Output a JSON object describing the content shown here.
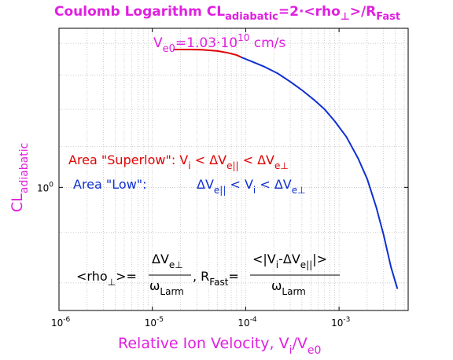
{
  "chart_data": {
    "type": "line",
    "title": {
      "main": "Coulomb Logarithm CL",
      "main_sub": "adiabatic",
      "eq": "=2·<rho",
      "eq_sub": "⊥",
      "tail": ">/R",
      "tail_sub": "Fast"
    },
    "subtitle": {
      "base": "V",
      "sub": "e0",
      "eq": "=1.03·10",
      "sup": "10",
      "unit": " cm/s"
    },
    "xlabel": {
      "main": "Relative Ion Velocity, V",
      "sub1": "i",
      "slash": "/V",
      "sub2": "e0"
    },
    "ylabel": {
      "main": "CL",
      "sub": "adiabatic"
    },
    "x_scale": "log",
    "y_scale": "log",
    "xlim": [
      1e-06,
      0.0055
    ],
    "ylim": [
      0.75,
      1.45
    ],
    "grid": true,
    "x_ticks": [
      {
        "value": 1e-06,
        "base": "10",
        "exp": "-6"
      },
      {
        "value": 1e-05,
        "base": "10",
        "exp": "-5"
      },
      {
        "value": 0.0001,
        "base": "10",
        "exp": "-4"
      },
      {
        "value": 0.001,
        "base": "10",
        "exp": "-3"
      }
    ],
    "y_ticks": [
      {
        "value": 1.0,
        "base": "10",
        "exp": "0"
      }
    ],
    "series": [
      {
        "color": "#e00000",
        "x": [
          1.7e-05,
          2.5e-05,
          3.5e-05,
          5e-05,
          6.5e-05,
          8e-05,
          9e-05
        ],
        "y": [
          1.38,
          1.38,
          1.379,
          1.375,
          1.369,
          1.362,
          1.355
        ]
      },
      {
        "color": "#1030d0",
        "x": [
          9e-05,
          0.00012,
          0.00016,
          0.00022,
          0.0003,
          0.0004,
          0.00055,
          0.0007,
          0.0009,
          0.0012,
          0.0016,
          0.002,
          0.0025,
          0.003,
          0.0036,
          0.0042
        ],
        "y": [
          1.355,
          1.34,
          1.325,
          1.305,
          1.28,
          1.255,
          1.225,
          1.2,
          1.167,
          1.125,
          1.07,
          1.02,
          0.955,
          0.895,
          0.83,
          0.79
        ]
      }
    ],
    "annotations": {
      "superlow": {
        "color": "#e00000",
        "a1": "Area \"Superlow\": V",
        "a1_sub": "i",
        "a2": " < ΔV",
        "a2_sub": "e||",
        "a3": " < ΔV",
        "a3_sub": "e⊥"
      },
      "low": {
        "color": "#1030d0",
        "label": "Area \"Low\":",
        "b1": "ΔV",
        "b1_sub": "e||",
        "b2": " < V",
        "b2_sub": "i",
        "b3": " < ΔV",
        "b3_sub": "e⊥"
      },
      "formula": {
        "rho_lhs": "<rho",
        "rho_sub": "⊥",
        "rho_tail": ">=",
        "num1": "ΔV",
        "num1_sub": "e⊥",
        "den1": "ω",
        "den1_sub": "Larm",
        "mid": ", R",
        "mid_sub": "Fast",
        "mid_eq": "=",
        "num2": "<|V",
        "num2_sub": "i",
        "num2_mid": "-ΔV",
        "num2_sub2": "e||",
        "num2_tail": "|>",
        "den2": "ω",
        "den2_sub": "Larm"
      }
    },
    "colors": {
      "accent": "#e020e0",
      "red": "#e00000",
      "blue": "#1030d0",
      "grid": "#b8b8b8"
    }
  }
}
